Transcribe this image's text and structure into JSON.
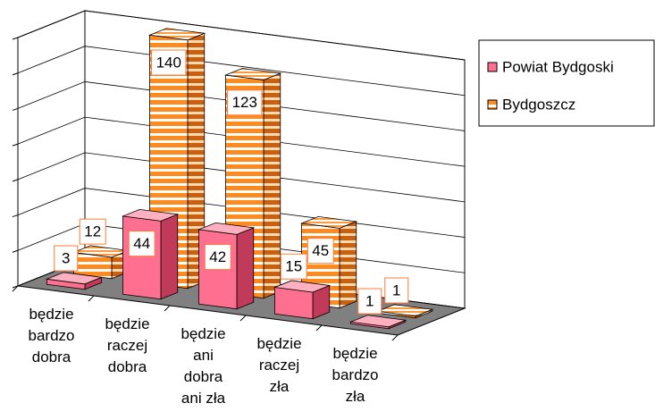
{
  "chart_data": {
    "type": "bar3d",
    "categories": [
      "będzie\nbardzo\ndobra",
      "będzie\nraczej\ndobra",
      "będzie\nani\ndobra\nani zła",
      "będzie\nraczej\nzła",
      "będzie\nbardzo\nzła"
    ],
    "series": [
      {
        "name": "Powiat Bydgoski",
        "color": "#ff6f8f",
        "values": [
          3,
          44,
          42,
          15,
          1
        ]
      },
      {
        "name": "Bydgoszcz",
        "color": "#ff8a1e",
        "values": [
          12,
          140,
          123,
          45,
          1
        ]
      }
    ],
    "ylim": [
      0,
      140
    ],
    "yticks": [
      0,
      20,
      40,
      60,
      80,
      100,
      120,
      140
    ],
    "grid": true,
    "legend": "right"
  }
}
